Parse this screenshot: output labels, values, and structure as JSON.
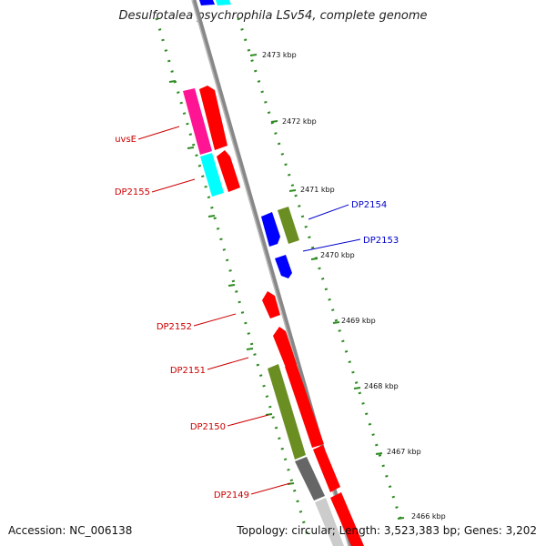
{
  "title": "Desulfotalea psychrophila LSv54, complete genome",
  "footer": {
    "accession": "Accession: NC_006138",
    "topology": "Topology: circular; Length: 3,523,383 bp; Genes: 3,202"
  },
  "ticks": [
    {
      "label": "2473 kbp"
    },
    {
      "label": "2472 kbp"
    },
    {
      "label": "2471 kbp"
    },
    {
      "label": "2470 kbp"
    },
    {
      "label": "2469 kbp"
    },
    {
      "label": "2468 kbp"
    },
    {
      "label": "2467 kbp"
    },
    {
      "label": "2466 kbp"
    }
  ],
  "gene_labels": [
    {
      "text": "uvsE",
      "color": "#cc0000"
    },
    {
      "text": "DP2155",
      "color": "#cc0000"
    },
    {
      "text": "DP2154",
      "color": "#0000cc"
    },
    {
      "text": "DP2153",
      "color": "#0000cc"
    },
    {
      "text": "DP2152",
      "color": "#cc0000"
    },
    {
      "text": "DP2151",
      "color": "#cc0000"
    },
    {
      "text": "DP2150",
      "color": "#cc0000"
    },
    {
      "text": "DP2149",
      "color": "#cc0000"
    }
  ],
  "colors": {
    "red": "#ff0000",
    "blue": "#0000ff",
    "cyan": "#00ffff",
    "magenta": "#ff1493",
    "olive": "#6b8e23",
    "gray": "#666666",
    "lightgray": "#cccccc",
    "backbone": "#888888",
    "tick": "#2e8b22"
  }
}
